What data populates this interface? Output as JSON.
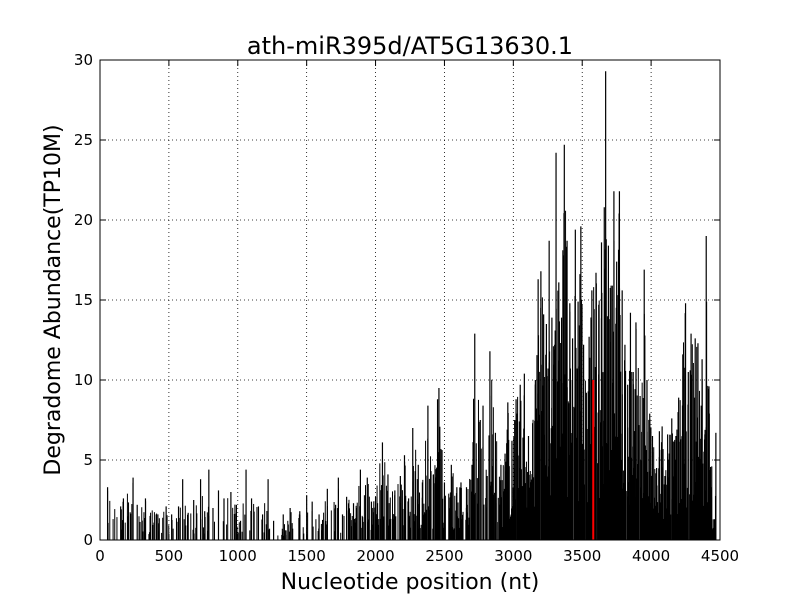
{
  "chart_data": {
    "type": "bar",
    "title": "ath-miR395d/AT5G13630.1",
    "xlabel": "Nucleotide position (nt)",
    "ylabel": "Degradome Abundance(TP10M)",
    "xlim": [
      0,
      4500
    ],
    "ylim": [
      0,
      30
    ],
    "xticks": [
      "0",
      "500",
      "1000",
      "1500",
      "2000",
      "2500",
      "3000",
      "3500",
      "4000",
      "4500"
    ],
    "yticks": [
      "0",
      "5",
      "10",
      "15",
      "20",
      "25",
      "30"
    ],
    "grid": true,
    "series": [
      {
        "color": "#000000",
        "note": "dense degradome signal profile; representative sampled peaks",
        "points": [
          [
            55,
            3.3
          ],
          [
            150,
            2.1
          ],
          [
            170,
            2.6
          ],
          [
            240,
            3.9
          ],
          [
            270,
            2.2
          ],
          [
            330,
            2.6
          ],
          [
            420,
            1.6
          ],
          [
            480,
            2.1
          ],
          [
            520,
            1.6
          ],
          [
            570,
            2.1
          ],
          [
            600,
            3.8
          ],
          [
            640,
            1.7
          ],
          [
            680,
            2.5
          ],
          [
            730,
            3.8
          ],
          [
            760,
            1.8
          ],
          [
            790,
            4.4
          ],
          [
            820,
            2.0
          ],
          [
            860,
            3.1
          ],
          [
            900,
            2.6
          ],
          [
            950,
            3.0
          ],
          [
            990,
            2.2
          ],
          [
            1020,
            1.2
          ],
          [
            1060,
            4.4
          ],
          [
            1100,
            2.6
          ],
          [
            1150,
            2.1
          ],
          [
            1180,
            1.6
          ],
          [
            1220,
            3.8
          ],
          [
            1260,
            1.2
          ],
          [
            1330,
            1.6
          ],
          [
            1350,
            0.6
          ],
          [
            1380,
            2.0
          ],
          [
            1450,
            1.8
          ],
          [
            1500,
            2.8
          ],
          [
            1540,
            2.4
          ],
          [
            1590,
            1.6
          ],
          [
            1650,
            3.2
          ],
          [
            1710,
            2.2
          ],
          [
            1730,
            3.9
          ],
          [
            1760,
            1.6
          ],
          [
            1790,
            2.7
          ],
          [
            1840,
            2.3
          ],
          [
            1890,
            4.4
          ],
          [
            1940,
            3.9
          ],
          [
            1970,
            2.4
          ],
          [
            2000,
            2.7
          ],
          [
            2050,
            6.1
          ],
          [
            2090,
            4.1
          ],
          [
            2140,
            3.1
          ],
          [
            2180,
            4.0
          ],
          [
            2210,
            5.3
          ],
          [
            2240,
            2.6
          ],
          [
            2270,
            7.0
          ],
          [
            2310,
            4.7
          ],
          [
            2340,
            3.6
          ],
          [
            2380,
            8.4
          ],
          [
            2420,
            4.1
          ],
          [
            2450,
            8.8
          ],
          [
            2460,
            9.5
          ],
          [
            2500,
            3.6
          ],
          [
            2550,
            4.7
          ],
          [
            2590,
            3.3
          ],
          [
            2620,
            3.6
          ],
          [
            2660,
            3.3
          ],
          [
            2700,
            4.7
          ],
          [
            2720,
            12.9
          ],
          [
            2760,
            7.5
          ],
          [
            2780,
            8.4
          ],
          [
            2810,
            4.0
          ],
          [
            2830,
            11.8
          ],
          [
            2870,
            6.7
          ],
          [
            2910,
            4.7
          ],
          [
            2940,
            5.4
          ],
          [
            2960,
            8.6
          ],
          [
            2990,
            6.2
          ],
          [
            3010,
            7.5
          ],
          [
            3020,
            8.8
          ],
          [
            3050,
            9.7
          ],
          [
            3070,
            6.4
          ],
          [
            3080,
            10.4
          ],
          [
            3110,
            6.5
          ],
          [
            3140,
            7.3
          ],
          [
            3160,
            10.0
          ],
          [
            3180,
            16.3
          ],
          [
            3200,
            16.8
          ],
          [
            3220,
            14.1
          ],
          [
            3240,
            13.5
          ],
          [
            3260,
            18.7
          ],
          [
            3280,
            13.9
          ],
          [
            3300,
            12.2
          ],
          [
            3310,
            24.2
          ],
          [
            3330,
            16.1
          ],
          [
            3350,
            13.9
          ],
          [
            3370,
            24.7
          ],
          [
            3390,
            18.7
          ],
          [
            3410,
            14.8
          ],
          [
            3430,
            12.6
          ],
          [
            3450,
            19.4
          ],
          [
            3470,
            14.9
          ],
          [
            3490,
            19.6
          ],
          [
            3510,
            12.2
          ],
          [
            3530,
            9.2
          ],
          [
            3550,
            12.7
          ],
          [
            3570,
            15.6
          ],
          [
            3600,
            16.7
          ],
          [
            3620,
            14.7
          ],
          [
            3640,
            18.6
          ],
          [
            3660,
            20.8
          ],
          [
            3670,
            29.3
          ],
          [
            3690,
            18.4
          ],
          [
            3710,
            15.9
          ],
          [
            3730,
            21.8
          ],
          [
            3750,
            17.4
          ],
          [
            3770,
            21.8
          ],
          [
            3790,
            15.6
          ],
          [
            3810,
            12.2
          ],
          [
            3830,
            9.7
          ],
          [
            3850,
            14.2
          ],
          [
            3870,
            10.5
          ],
          [
            3890,
            13.6
          ],
          [
            3920,
            9.0
          ],
          [
            3950,
            16.9
          ],
          [
            3970,
            10.0
          ],
          [
            3990,
            7.9
          ],
          [
            4010,
            6.5
          ],
          [
            4040,
            4.5
          ],
          [
            4060,
            6.8
          ],
          [
            4080,
            7.1
          ],
          [
            4100,
            4.0
          ],
          [
            4120,
            6.6
          ],
          [
            4150,
            7.6
          ],
          [
            4180,
            6.5
          ],
          [
            4200,
            8.9
          ],
          [
            4230,
            11.6
          ],
          [
            4250,
            14.8
          ],
          [
            4270,
            10.5
          ],
          [
            4290,
            12.9
          ],
          [
            4320,
            12.6
          ],
          [
            4340,
            12.3
          ],
          [
            4370,
            11.3
          ],
          [
            4390,
            6.6
          ],
          [
            4400,
            19.0
          ],
          [
            4420,
            9.6
          ],
          [
            4440,
            4.6
          ],
          [
            4460,
            1.3
          ],
          [
            4470,
            6.7
          ]
        ]
      }
    ],
    "highlight": {
      "x": 3580,
      "y": 10.0,
      "color": "#ff0000"
    }
  }
}
